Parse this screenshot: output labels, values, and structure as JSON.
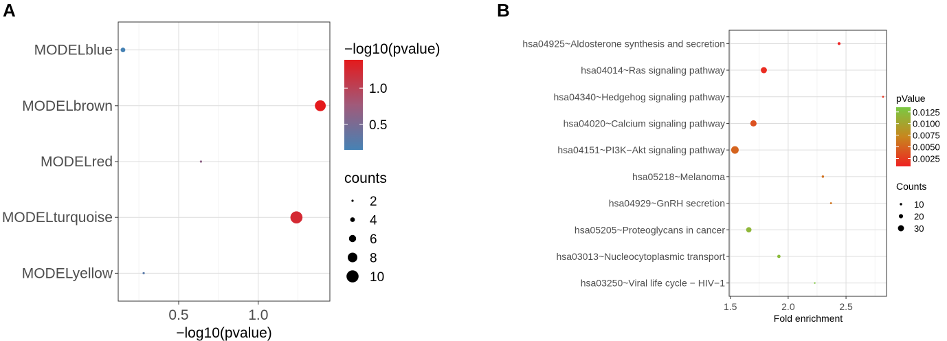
{
  "chart_data": [
    {
      "panel_label": "A",
      "type": "scatter",
      "xlabel": "−log10(pvalue)",
      "ylabel": "",
      "xlim": [
        0.12,
        1.45
      ],
      "xticks": [
        0.5,
        1.0
      ],
      "xtick_labels": [
        "0.5",
        "1.0"
      ],
      "categories": [
        "MODELblue",
        "MODELbrown",
        "MODELred",
        "MODELturquoise",
        "MODELyellow"
      ],
      "points": [
        {
          "category": "MODELblue",
          "x": 0.15,
          "counts": 4,
          "color_value": 0.15
        },
        {
          "category": "MODELbrown",
          "x": 1.39,
          "counts": 9,
          "color_value": 1.39
        },
        {
          "category": "MODELred",
          "x": 0.64,
          "counts": 2,
          "color_value": 0.64
        },
        {
          "category": "MODELturquoise",
          "x": 1.24,
          "counts": 10,
          "color_value": 1.24
        },
        {
          "category": "MODELyellow",
          "x": 0.28,
          "counts": 2,
          "color_value": 0.28
        }
      ],
      "color_legend": {
        "title": "−log10(pvalue)",
        "range": [
          0.15,
          1.39
        ],
        "breaks": [
          0.5,
          1.0
        ],
        "break_labels": [
          "0.5",
          "1.0"
        ],
        "low_color": "#4682b4",
        "high_color": "#e41a1c"
      },
      "size_legend": {
        "title": "counts",
        "breaks": [
          2,
          4,
          6,
          8,
          10
        ],
        "break_labels": [
          "2",
          "4",
          "6",
          "8",
          "10"
        ]
      },
      "grid": true,
      "legend_position": "right"
    },
    {
      "panel_label": "B",
      "type": "scatter",
      "xlabel": "Fold enrichment",
      "ylabel": "",
      "xlim": [
        1.49,
        2.85
      ],
      "xticks": [
        1.5,
        2.0,
        2.5
      ],
      "xtick_labels": [
        "1.5",
        "2.0",
        "2.5"
      ],
      "categories": [
        "hsa04925~Aldosterone synthesis and secretion",
        "hsa04014~Ras signaling pathway",
        "hsa04340~Hedgehog signaling pathway",
        "hsa04020~Calcium signaling pathway",
        "hsa04151~PI3K−Akt signaling pathway",
        "hsa05218~Melanoma",
        "hsa04929~GnRH secretion",
        "hsa05205~Proteoglycans in cancer",
        "hsa03013~Nucleocytoplasmic transport",
        "hsa03250~Viral life cycle − HIV−1"
      ],
      "points": [
        {
          "category": "hsa04925~Aldosterone synthesis and secretion",
          "x": 2.44,
          "counts": 13,
          "pValue": 0.0008
        },
        {
          "category": "hsa04014~Ras signaling pathway",
          "x": 1.79,
          "counts": 30,
          "pValue": 0.0015
        },
        {
          "category": "hsa04340~Hedgehog signaling pathway",
          "x": 2.82,
          "counts": 7,
          "pValue": 0.002
        },
        {
          "category": "hsa04020~Calcium signaling pathway",
          "x": 1.7,
          "counts": 31,
          "pValue": 0.0038
        },
        {
          "category": "hsa04151~PI3K−Akt signaling pathway",
          "x": 1.54,
          "counts": 38,
          "pValue": 0.005
        },
        {
          "category": "hsa05218~Melanoma",
          "x": 2.3,
          "counts": 10,
          "pValue": 0.0058
        },
        {
          "category": "hsa04929~GnRH secretion",
          "x": 2.37,
          "counts": 8,
          "pValue": 0.006
        },
        {
          "category": "hsa05205~Proteoglycans in cancer",
          "x": 1.66,
          "counts": 26,
          "pValue": 0.0118
        },
        {
          "category": "hsa03013~Nucleocytoplasmic transport",
          "x": 1.92,
          "counts": 15,
          "pValue": 0.0122
        },
        {
          "category": "hsa03250~Viral life cycle − HIV−1",
          "x": 2.23,
          "counts": 6,
          "pValue": 0.0132
        }
      ],
      "color_legend": {
        "title": "pValue",
        "range": [
          0.0008,
          0.0135
        ],
        "breaks": [
          0.0025,
          0.005,
          0.0075,
          0.01,
          0.0125
        ],
        "break_labels": [
          "0.0025",
          "0.0050",
          "0.0075",
          "0.0100",
          "0.0125"
        ],
        "low_color": "#ee2222",
        "mid_color": "#c8861e",
        "high_color": "#7ac943"
      },
      "size_legend": {
        "title": "Counts",
        "breaks": [
          10,
          20,
          30
        ],
        "break_labels": [
          "10",
          "20",
          "30"
        ]
      },
      "grid": true,
      "legend_position": "right"
    }
  ]
}
